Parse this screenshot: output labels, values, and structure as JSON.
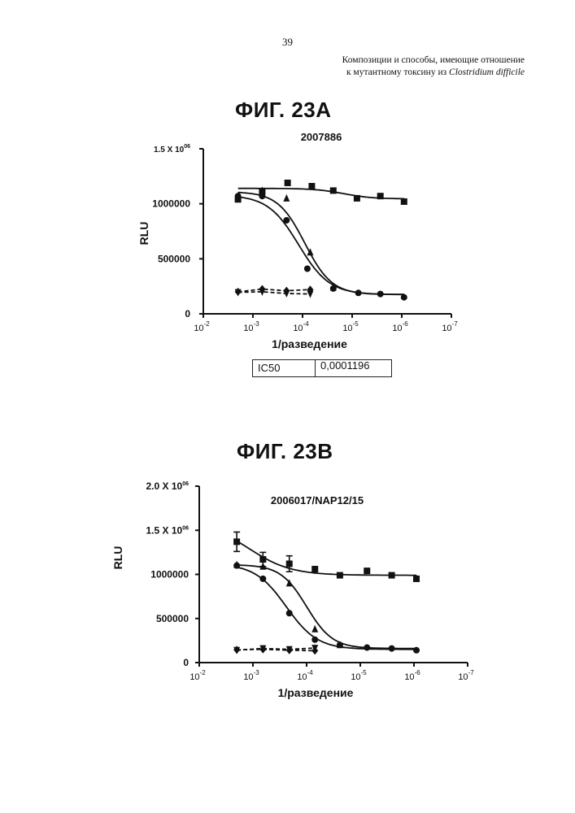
{
  "page": {
    "number": "39",
    "header_line1": "Композиции и способы, имеющие отношение",
    "header_line2_prefix": "к мутантному токсину из ",
    "header_line2_italic": "Clostridium difficile"
  },
  "figures": {
    "a_title": "ФИГ. 23A",
    "b_title": "ФИГ. 23B"
  },
  "ic50": {
    "label": "IC50",
    "value": "0,0001196"
  },
  "chart_data": [
    {
      "type": "scatter",
      "title": "2007886",
      "xlabel": "1/разведение",
      "ylabel": "RLU",
      "xscale": "log",
      "xaxis": "reversed",
      "xlim": [
        -2,
        -7
      ],
      "xticks": [
        -2,
        -3,
        -4,
        -5,
        -6,
        -7
      ],
      "ylim": [
        0,
        1500000
      ],
      "yticks": [
        {
          "value": 0,
          "label": "0"
        },
        {
          "value": 500000,
          "label": "500000"
        },
        {
          "value": 1000000,
          "label": "1000000"
        },
        {
          "value": 1500000,
          "label": "1.5 X 10",
          "exp": "06"
        }
      ],
      "grid": false,
      "series": [
        {
          "marker": "square",
          "fit": "solid",
          "x": [
            0.002,
            0.00065,
            0.0002,
            6.5e-05,
            2.4e-05,
            8e-06,
            2.7e-06,
            9e-07
          ],
          "y": [
            1040000,
            1110000,
            1190000,
            1160000,
            1120000,
            1050000,
            1070000,
            1020000
          ],
          "fit_top": 1140000,
          "fit_bottom": 1045000,
          "fit_ec50": 1.5e-05,
          "fit_slope": 1.5
        },
        {
          "marker": "triangle",
          "fit": "solid",
          "x": [
            0.002,
            0.00065,
            0.00021,
            7e-05,
            2.4e-05
          ],
          "y": [
            1070000,
            1120000,
            1050000,
            560000,
            240000
          ],
          "fit_top": 1110000,
          "fit_bottom": 175000,
          "fit_ec50": 9e-05,
          "fit_slope": 1.6
        },
        {
          "marker": "circle",
          "fit": "solid",
          "x": [
            0.002,
            0.00065,
            0.00021,
            8e-05,
            2.4e-05,
            7.5e-06,
            2.7e-06,
            9e-07
          ],
          "y": [
            1070000,
            1070000,
            850000,
            410000,
            230000,
            190000,
            180000,
            150000
          ],
          "fit_top": 1080000,
          "fit_bottom": 175000,
          "fit_ec50": 0.0001196,
          "fit_slope": 1.4
        },
        {
          "marker": "diamond",
          "fit": "dashed",
          "x": [
            0.002,
            0.00065,
            0.00021,
            7e-05
          ],
          "y": [
            200000,
            225000,
            210000,
            220000
          ]
        },
        {
          "marker": "triangle-down",
          "fit": "dashed",
          "x": [
            0.002,
            0.00065,
            0.00021,
            7e-05
          ],
          "y": [
            195000,
            200000,
            185000,
            180000
          ]
        }
      ]
    },
    {
      "type": "scatter",
      "title": "2006017/NAP12/15",
      "xlabel": "1/разведение",
      "ylabel": "RLU",
      "xscale": "log",
      "xaxis": "reversed",
      "xlim": [
        -2,
        -7
      ],
      "xticks": [
        -2,
        -3,
        -4,
        -5,
        -6,
        -7
      ],
      "ylim": [
        0,
        2000000
      ],
      "yticks": [
        {
          "value": 0,
          "label": "0"
        },
        {
          "value": 500000,
          "label": "500000"
        },
        {
          "value": 1000000,
          "label": "1000000"
        },
        {
          "value": 1500000,
          "label": "1.5 X 10",
          "exp": "06"
        },
        {
          "value": 2000000,
          "label": "2.0 X 10",
          "exp": "06"
        }
      ],
      "grid": false,
      "series": [
        {
          "marker": "square",
          "fit": "solid",
          "x": [
            0.002,
            0.00065,
            0.00021,
            7e-05,
            2.4e-05,
            7.5e-06,
            2.6e-06,
            9e-07
          ],
          "y": [
            1370000,
            1170000,
            1120000,
            1060000,
            990000,
            1040000,
            990000,
            950000
          ],
          "err": [
            110000,
            80000,
            90000,
            0,
            0,
            0,
            0,
            0
          ],
          "fit_top": 1600000,
          "fit_bottom": 990000,
          "fit_ec50": 0.0012,
          "fit_slope": 1.1
        },
        {
          "marker": "triangle",
          "fit": "solid",
          "x": [
            0.002,
            0.00065,
            0.00021,
            7e-05,
            2.4e-05
          ],
          "y": [
            1110000,
            1090000,
            900000,
            380000,
            200000
          ],
          "fit_top": 1110000,
          "fit_bottom": 160000,
          "fit_ec50": 0.0001,
          "fit_slope": 1.8
        },
        {
          "marker": "circle",
          "fit": "solid",
          "x": [
            0.002,
            0.00065,
            0.00021,
            7e-05,
            2.4e-05,
            7.5e-06,
            2.6e-06,
            9e-07
          ],
          "y": [
            1100000,
            950000,
            560000,
            260000,
            200000,
            170000,
            160000,
            140000
          ],
          "fit_top": 1120000,
          "fit_bottom": 150000,
          "fit_ec50": 0.00024,
          "fit_slope": 1.5
        },
        {
          "marker": "diamond",
          "fit": "dashed",
          "x": [
            0.002,
            0.00065,
            0.00021,
            7e-05
          ],
          "y": [
            145000,
            150000,
            140000,
            135000
          ]
        },
        {
          "marker": "triangle-down",
          "fit": "dashed",
          "x": [
            0.002,
            0.00065,
            0.00021,
            7e-05
          ],
          "y": [
            140000,
            160000,
            150000,
            165000
          ]
        }
      ]
    }
  ]
}
